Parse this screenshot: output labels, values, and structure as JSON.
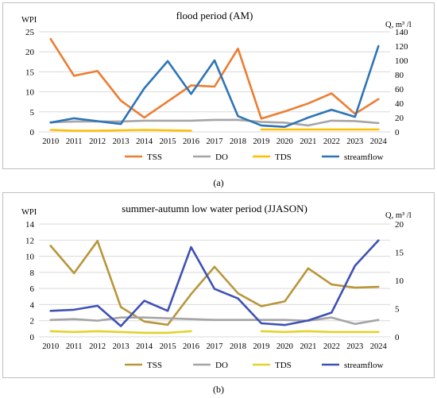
{
  "chart_data": [
    {
      "type": "line",
      "title": "flood period (AM)",
      "ylabel": "WPI",
      "y2label": "Q, m³ /l",
      "x": [
        "2010",
        "2011",
        "2012",
        "2013",
        "2014",
        "2015",
        "2016",
        "2017",
        "2018",
        "2019",
        "2020",
        "2021",
        "2022",
        "2023",
        "2024"
      ],
      "ylim": [
        0,
        25
      ],
      "yticks": [
        0,
        5,
        10,
        15,
        20,
        25
      ],
      "y2lim": [
        0,
        140
      ],
      "y2ticks": [
        0,
        20,
        40,
        60,
        80,
        100,
        120,
        140
      ],
      "grid": true,
      "legend_position": "bottom",
      "series": [
        {
          "name": "TSS",
          "axis": "left",
          "color": "#ed7d31",
          "values": [
            23.2,
            14.0,
            15.2,
            7.8,
            3.6,
            7.6,
            11.6,
            11.3,
            20.8,
            3.3,
            5.1,
            7.1,
            9.6,
            4.5,
            8.2
          ]
        },
        {
          "name": "DO",
          "axis": "left",
          "color": "#a5a5a5",
          "values": [
            2.4,
            2.6,
            2.6,
            2.6,
            2.8,
            2.8,
            2.8,
            3.0,
            3.0,
            2.5,
            2.3,
            1.6,
            2.8,
            2.7,
            2.2
          ]
        },
        {
          "name": "TDS",
          "axis": "left",
          "color": "#ffc000",
          "values": [
            0.5,
            0.3,
            0.3,
            0.4,
            0.5,
            0.4,
            0.3,
            null,
            null,
            0.6,
            0.6,
            0.6,
            0.6,
            0.6,
            0.6
          ]
        },
        {
          "name": "streamflow",
          "axis": "right",
          "color": "#2e75b6",
          "values": [
            13,
            19,
            15,
            11,
            61,
            99,
            53,
            100,
            22,
            9,
            7,
            20,
            31,
            21,
            120
          ]
        }
      ]
    },
    {
      "type": "line",
      "title": "summer-autumn low water period (JJASON)",
      "ylabel": "WPI",
      "y2label": "Q, m³ /l",
      "x": [
        "2010",
        "2011",
        "2012",
        "2013",
        "2014",
        "2015",
        "2016",
        "2017",
        "2018",
        "2019",
        "2020",
        "2021",
        "2022",
        "2023",
        "2024"
      ],
      "ylim": [
        0,
        14
      ],
      "yticks": [
        0,
        2,
        4,
        6,
        8,
        10,
        12,
        14
      ],
      "y2lim": [
        0,
        20
      ],
      "y2ticks": [
        0,
        5,
        10,
        15,
        20
      ],
      "grid": true,
      "legend_position": "bottom",
      "series": [
        {
          "name": "TSS",
          "axis": "left",
          "color": "#b8963a",
          "values": [
            11.3,
            7.9,
            11.9,
            3.7,
            1.9,
            1.5,
            5.3,
            8.7,
            5.4,
            3.8,
            4.4,
            8.5,
            6.5,
            6.1,
            6.2
          ]
        },
        {
          "name": "DO",
          "axis": "left",
          "color": "#a5a5a5",
          "values": [
            2.1,
            2.2,
            2.0,
            2.4,
            2.4,
            2.3,
            2.2,
            2.1,
            2.1,
            2.1,
            2.1,
            2.0,
            2.4,
            1.6,
            2.1
          ]
        },
        {
          "name": "TDS",
          "axis": "left",
          "color": "#e2d32a",
          "values": [
            0.7,
            0.6,
            0.7,
            0.6,
            0.5,
            0.5,
            0.7,
            null,
            null,
            0.7,
            0.6,
            0.7,
            0.6,
            0.6,
            0.6
          ]
        },
        {
          "name": "streamflow",
          "axis": "right",
          "color": "#3f51b5",
          "values": [
            4.6,
            4.8,
            5.5,
            1.9,
            6.4,
            4.6,
            15.9,
            8.5,
            6.8,
            2.4,
            2.1,
            2.9,
            4.3,
            12.6,
            17.1
          ]
        }
      ]
    }
  ],
  "captions": [
    "(a)",
    "(b)"
  ]
}
